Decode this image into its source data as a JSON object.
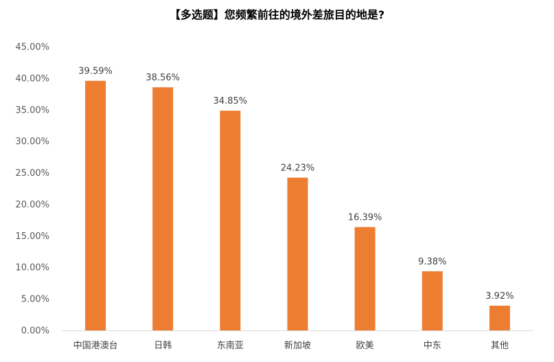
{
  "chart_data": {
    "type": "bar",
    "title": "【多选题】您频繁前往的境外差旅目的地是?",
    "xlabel": "",
    "ylabel": "",
    "categories": [
      "中国港澳台",
      "日韩",
      "东南亚",
      "新加坡",
      "欧美",
      "中东",
      "其他"
    ],
    "values": [
      39.59,
      38.56,
      34.85,
      24.23,
      16.39,
      9.38,
      3.92
    ],
    "data_labels": [
      "39.59%",
      "38.56%",
      "34.85%",
      "24.23%",
      "16.39%",
      "9.38%",
      "3.92%"
    ],
    "ylim": [
      0,
      45
    ],
    "yticks": [
      0,
      5,
      10,
      15,
      20,
      25,
      30,
      35,
      40,
      45
    ],
    "ytick_labels": [
      "0.00%",
      "5.00%",
      "10.00%",
      "15.00%",
      "20.00%",
      "25.00%",
      "30.00%",
      "35.00%",
      "40.00%",
      "45.00%"
    ],
    "grid": false,
    "legend": "none",
    "colors": {
      "bar": "#ED7D31",
      "axis": "#D9D9D9"
    }
  }
}
